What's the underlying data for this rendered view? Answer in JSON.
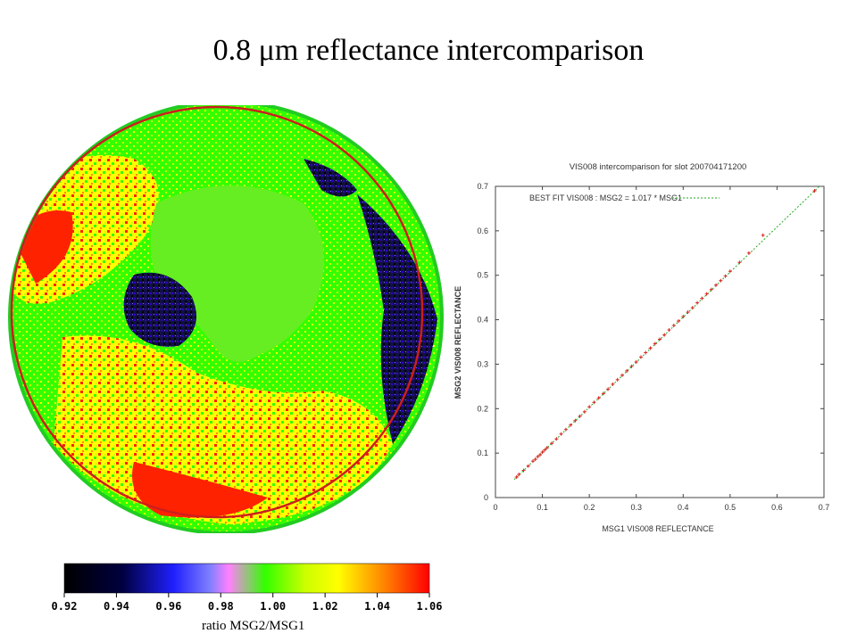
{
  "page": {
    "title": "0.8 μm reflectance intercomparison"
  },
  "disk_map": {
    "circle_color": "#cc1e1e",
    "dominant_colors": [
      "#33ff00",
      "#ffff00",
      "#ff2200",
      "#000000",
      "#3300cc"
    ]
  },
  "colorbar": {
    "tick_labels": [
      "0.92",
      "0.94",
      "0.96",
      "0.98",
      "1.00",
      "1.02",
      "1.04",
      "1.06"
    ],
    "label": "ratio MSG2/MSG1",
    "colors": [
      "#000000",
      "#000080",
      "#2020ff",
      "#ff80ff",
      "#33ff00",
      "#ccff00",
      "#ffff00",
      "#ff8000",
      "#ff0000"
    ]
  },
  "chart_data": {
    "type": "scatter",
    "title": "VIS008 intercomparison for slot 200704171200",
    "xlabel": "MSG1 VIS008 REFLECTANCE",
    "ylabel": "MSG2 VIS008 REFLECTANCE",
    "xlim": [
      0,
      0.7
    ],
    "ylim": [
      0,
      0.7
    ],
    "x_ticks": [
      "0",
      "0.1",
      "0.2",
      "0.3",
      "0.4",
      "0.5",
      "0.6",
      "0.7"
    ],
    "y_ticks": [
      "0",
      "0.1",
      "0.2",
      "0.3",
      "0.4",
      "0.5",
      "0.6",
      "0.7"
    ],
    "grid": false,
    "legend": "top-left",
    "fit_label": "BEST FIT VIS008   : MSG2 = 1.017 * MSG1",
    "fit_slope": 1.017,
    "fit_color": "#22aa22",
    "point_color": "#dd2222",
    "series": [
      {
        "x": [
          0.045,
          0.05,
          0.06,
          0.07,
          0.08,
          0.085,
          0.09,
          0.095,
          0.1,
          0.105,
          0.11,
          0.12,
          0.13,
          0.14,
          0.15,
          0.16,
          0.17,
          0.18,
          0.19,
          0.2,
          0.21,
          0.22,
          0.23,
          0.24,
          0.25,
          0.26,
          0.27,
          0.28,
          0.29,
          0.3,
          0.31,
          0.32,
          0.33,
          0.34,
          0.35,
          0.36,
          0.37,
          0.38,
          0.39,
          0.4,
          0.41,
          0.42,
          0.43,
          0.44,
          0.45,
          0.46,
          0.47,
          0.48,
          0.49,
          0.5,
          0.52,
          0.54,
          0.57,
          0.68
        ],
        "y": [
          0.046,
          0.052,
          0.061,
          0.071,
          0.082,
          0.086,
          0.092,
          0.096,
          0.102,
          0.107,
          0.112,
          0.122,
          0.132,
          0.143,
          0.153,
          0.163,
          0.173,
          0.183,
          0.193,
          0.204,
          0.214,
          0.224,
          0.234,
          0.244,
          0.255,
          0.265,
          0.275,
          0.285,
          0.295,
          0.305,
          0.316,
          0.326,
          0.336,
          0.346,
          0.356,
          0.366,
          0.377,
          0.387,
          0.397,
          0.407,
          0.417,
          0.427,
          0.438,
          0.448,
          0.458,
          0.468,
          0.478,
          0.488,
          0.498,
          0.509,
          0.529,
          0.55,
          0.59,
          0.69
        ]
      }
    ]
  }
}
